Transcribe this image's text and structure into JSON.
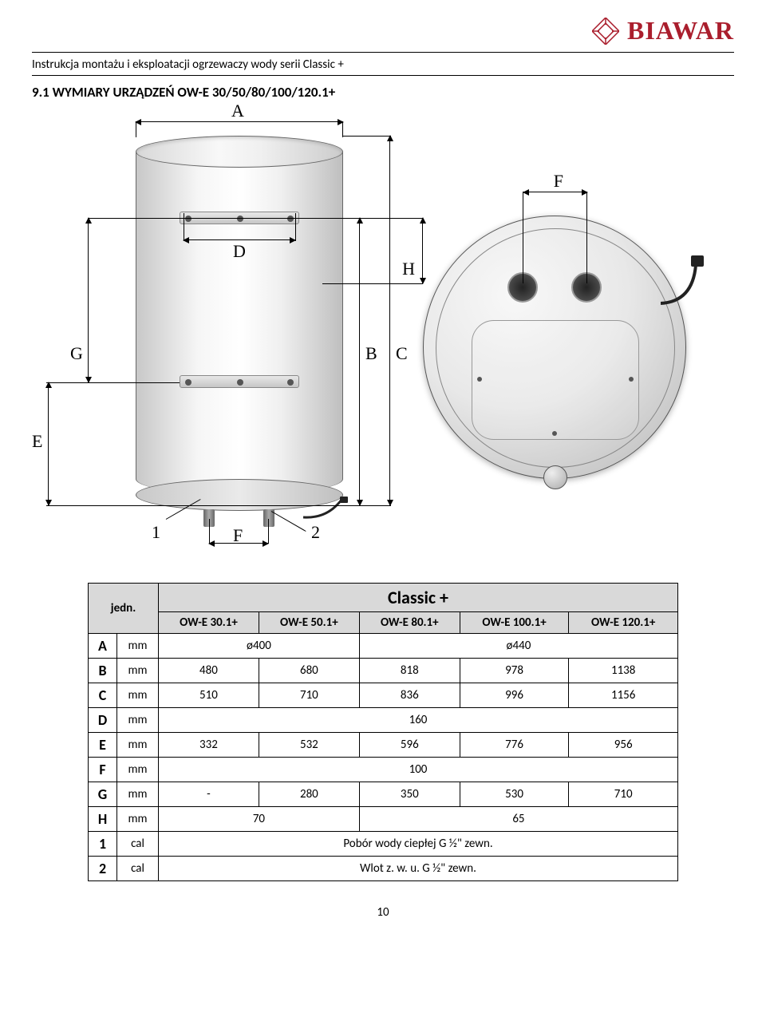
{
  "brand": "BIAWAR",
  "brand_color": "#aa1e2d",
  "doc_title": "Instrukcja montażu i eksploatacji ogrzewaczy wody serii Classic +",
  "section_heading": "9.1 WYMIARY URZĄDZEŃ OW-E 30/50/80/100/120.1+",
  "diagram_labels": {
    "A": "A",
    "B": "B",
    "C": "C",
    "D": "D",
    "E": "E",
    "F": "F",
    "G": "G",
    "H": "H",
    "one": "1",
    "two": "2",
    "F2": "F"
  },
  "table": {
    "title": "Classic +",
    "jedn": "jedn.",
    "columns": [
      "OW-E 30.1+",
      "OW-E 50.1+",
      "OW-E 80.1+",
      "OW-E 100.1+",
      "OW-E 120.1+"
    ],
    "rows": [
      {
        "label": "A",
        "unit": "mm",
        "merged": [
          {
            "span": 2,
            "val": "ø400"
          },
          {
            "span": 3,
            "val": "ø440"
          }
        ]
      },
      {
        "label": "B",
        "unit": "mm",
        "cells": [
          "480",
          "680",
          "818",
          "978",
          "1138"
        ]
      },
      {
        "label": "C",
        "unit": "mm",
        "cells": [
          "510",
          "710",
          "836",
          "996",
          "1156"
        ]
      },
      {
        "label": "D",
        "unit": "mm",
        "merged": [
          {
            "span": 5,
            "val": "160"
          }
        ]
      },
      {
        "label": "E",
        "unit": "mm",
        "cells": [
          "332",
          "532",
          "596",
          "776",
          "956"
        ]
      },
      {
        "label": "F",
        "unit": "mm",
        "merged": [
          {
            "span": 5,
            "val": "100"
          }
        ]
      },
      {
        "label": "G",
        "unit": "mm",
        "cells": [
          "-",
          "280",
          "350",
          "530",
          "710"
        ]
      },
      {
        "label": "H",
        "unit": "mm",
        "merged": [
          {
            "span": 2,
            "val": "70"
          },
          {
            "span": 3,
            "val": "65"
          }
        ]
      },
      {
        "label": "1",
        "unit": "cal",
        "merged": [
          {
            "span": 5,
            "val": "Pobór wody ciepłej G ½\" zewn."
          }
        ]
      },
      {
        "label": "2",
        "unit": "cal",
        "merged": [
          {
            "span": 5,
            "val": "Wlot z. w. u. G ½\" zewn."
          }
        ]
      }
    ]
  },
  "page_number": "10"
}
